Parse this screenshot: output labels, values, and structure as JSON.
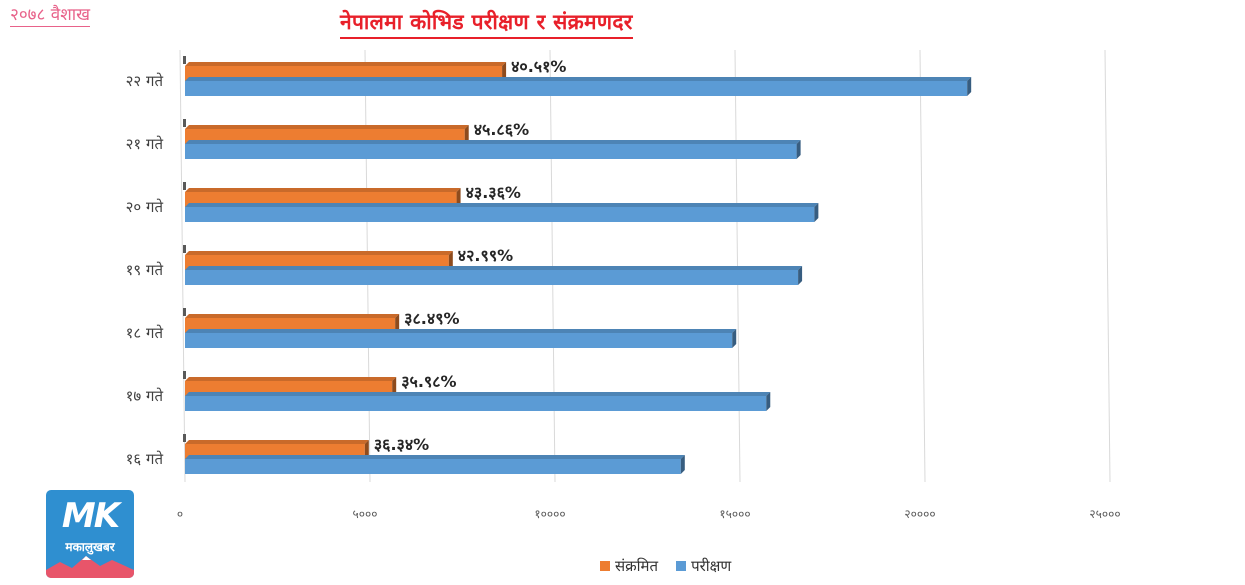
{
  "corner_label": "२०७८ वैशाख",
  "colors": {
    "infected": "#ed7d31",
    "tests": "#5b9bd5",
    "title": "#e8202a"
  },
  "logo": {
    "mark": "MK",
    "text": "मकालुखबर"
  },
  "chart_data": {
    "type": "bar",
    "orientation": "horizontal",
    "title": "नेपालमा कोभिड परीक्षण र संक्रमणदर",
    "categories": [
      "२२ गते",
      "२१ गते",
      "२० गते",
      "१९ गते",
      "१८ गते",
      "१७ गते",
      "१६ गते"
    ],
    "series": [
      {
        "name": "संक्रमित",
        "color": "#ed7d31",
        "values": [
          8570,
          7560,
          7340,
          7130,
          5680,
          5600,
          4860
        ]
      },
      {
        "name": "परीक्षण",
        "color": "#5b9bd5",
        "values": [
          21140,
          16530,
          17010,
          16570,
          14790,
          15710,
          13400
        ]
      }
    ],
    "data_labels": [
      "४०.५१%",
      "४५.८६%",
      "४३.३६%",
      "४२.९९%",
      "३८.४९%",
      "३५.९८%",
      "३६.३४%"
    ],
    "x_ticks": [
      0,
      5000,
      10000,
      15000,
      20000,
      25000
    ],
    "x_tick_labels": [
      "०",
      "५०००",
      "१००००",
      "१५०००",
      "२००००",
      "२५०००"
    ],
    "xlim": [
      0,
      25000
    ],
    "grid": true,
    "legend_position": "bottom"
  }
}
